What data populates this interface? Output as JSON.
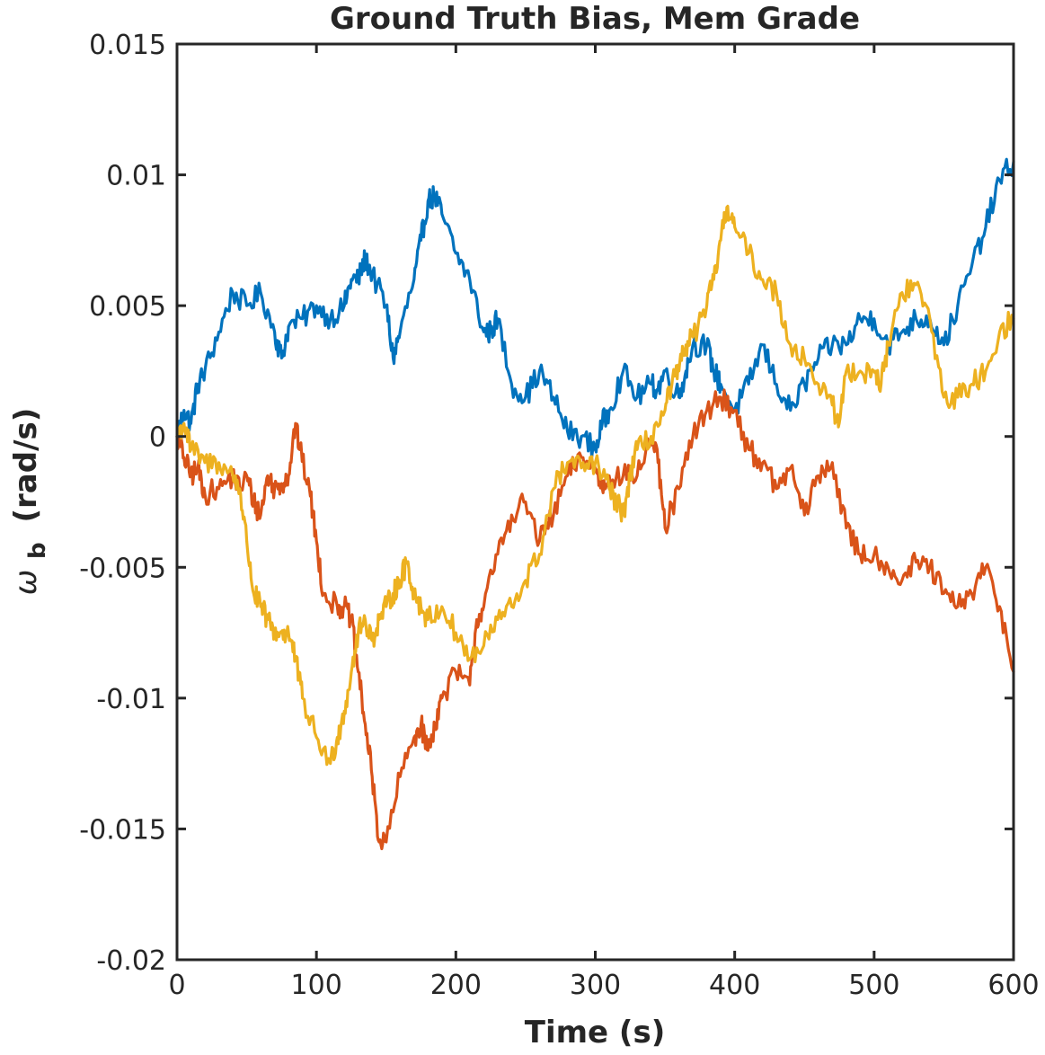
{
  "chart_data": {
    "type": "line",
    "title": "Ground Truth Bias, Mem Grade",
    "xlabel": "Time (s)",
    "ylabel": {
      "symbol": "ω",
      "subscript": "b",
      "unit": "(rad/s)"
    },
    "xlim": [
      0,
      600
    ],
    "ylim": [
      -0.02,
      0.015
    ],
    "xticks": [
      0,
      100,
      200,
      300,
      400,
      500,
      600
    ],
    "xtick_labels": [
      "0",
      "100",
      "200",
      "300",
      "400",
      "500",
      "600"
    ],
    "yticks": [
      0.015,
      0.01,
      0.005,
      0,
      -0.005,
      -0.01,
      -0.015,
      -0.02
    ],
    "ytick_labels": [
      "0.015",
      "0.01",
      "0.005",
      "0",
      "-0.005",
      "-0.01",
      "-0.015",
      "-0.02"
    ],
    "grid": false,
    "series": [
      {
        "color": "#0072BD",
        "points": [
          [
            0,
            0
          ],
          [
            5,
            0.001
          ],
          [
            10,
            0.0005
          ],
          [
            15,
            0.002
          ],
          [
            20,
            0.0025
          ],
          [
            30,
            0.004
          ],
          [
            40,
            0.0055
          ],
          [
            50,
            0.005
          ],
          [
            60,
            0.0055
          ],
          [
            70,
            0.004
          ],
          [
            75,
            0.003
          ],
          [
            80,
            0.0042
          ],
          [
            90,
            0.0045
          ],
          [
            100,
            0.005
          ],
          [
            110,
            0.0045
          ],
          [
            120,
            0.005
          ],
          [
            125,
            0.006
          ],
          [
            130,
            0.006
          ],
          [
            135,
            0.0068
          ],
          [
            140,
            0.0062
          ],
          [
            150,
            0.005
          ],
          [
            155,
            0.003
          ],
          [
            160,
            0.004
          ],
          [
            170,
            0.006
          ],
          [
            175,
            0.0075
          ],
          [
            180,
            0.009
          ],
          [
            185,
            0.0092
          ],
          [
            190,
            0.0085
          ],
          [
            200,
            0.007
          ],
          [
            210,
            0.006
          ],
          [
            220,
            0.004
          ],
          [
            225,
            0.004
          ],
          [
            230,
            0.0045
          ],
          [
            240,
            0.002
          ],
          [
            250,
            0.0015
          ],
          [
            260,
            0.0025
          ],
          [
            270,
            0.0015
          ],
          [
            280,
            0.0002
          ],
          [
            290,
            0.0
          ],
          [
            300,
            -0.0005
          ],
          [
            305,
            0.0005
          ],
          [
            310,
            0.001
          ],
          [
            320,
            0.0025
          ],
          [
            330,
            0.0015
          ],
          [
            340,
            0.002
          ],
          [
            345,
            0.0018
          ],
          [
            350,
            0.0025
          ],
          [
            360,
            0.0015
          ],
          [
            365,
            0.0025
          ],
          [
            370,
            0.0035
          ],
          [
            380,
            0.0035
          ],
          [
            385,
            0.0025
          ],
          [
            390,
            0.002
          ],
          [
            400,
            0.001
          ],
          [
            410,
            0.002
          ],
          [
            420,
            0.0035
          ],
          [
            430,
            0.002
          ],
          [
            440,
            0.001
          ],
          [
            450,
            0.002
          ],
          [
            460,
            0.003
          ],
          [
            470,
            0.0035
          ],
          [
            480,
            0.0035
          ],
          [
            490,
            0.0045
          ],
          [
            500,
            0.0045
          ],
          [
            510,
            0.0035
          ],
          [
            520,
            0.004
          ],
          [
            530,
            0.0045
          ],
          [
            540,
            0.0045
          ],
          [
            550,
            0.0035
          ],
          [
            560,
            0.005
          ],
          [
            570,
            0.0065
          ],
          [
            580,
            0.008
          ],
          [
            590,
            0.0098
          ],
          [
            600,
            0.0105
          ]
        ]
      },
      {
        "color": "#D95319",
        "points": [
          [
            0,
            0
          ],
          [
            5,
            -0.0008
          ],
          [
            10,
            -0.0015
          ],
          [
            15,
            -0.0012
          ],
          [
            20,
            -0.0022
          ],
          [
            30,
            -0.002
          ],
          [
            40,
            -0.0015
          ],
          [
            45,
            -0.002
          ],
          [
            50,
            -0.0015
          ],
          [
            55,
            -0.0025
          ],
          [
            60,
            -0.003
          ],
          [
            65,
            -0.0015
          ],
          [
            70,
            -0.002
          ],
          [
            75,
            -0.0018
          ],
          [
            80,
            -0.0015
          ],
          [
            85,
            0.0005
          ],
          [
            88,
            -0.0005
          ],
          [
            95,
            -0.002
          ],
          [
            100,
            -0.004
          ],
          [
            105,
            -0.006
          ],
          [
            115,
            -0.0065
          ],
          [
            120,
            -0.0065
          ],
          [
            125,
            -0.007
          ],
          [
            130,
            -0.009
          ],
          [
            135,
            -0.011
          ],
          [
            140,
            -0.013
          ],
          [
            145,
            -0.0155
          ],
          [
            150,
            -0.0155
          ],
          [
            160,
            -0.013
          ],
          [
            170,
            -0.0115
          ],
          [
            175,
            -0.011
          ],
          [
            180,
            -0.012
          ],
          [
            185,
            -0.011
          ],
          [
            190,
            -0.01
          ],
          [
            200,
            -0.009
          ],
          [
            210,
            -0.0095
          ],
          [
            215,
            -0.007
          ],
          [
            220,
            -0.0065
          ],
          [
            230,
            -0.0045
          ],
          [
            240,
            -0.003
          ],
          [
            250,
            -0.0025
          ],
          [
            260,
            -0.004
          ],
          [
            270,
            -0.003
          ],
          [
            280,
            -0.0015
          ],
          [
            290,
            -0.0008
          ],
          [
            300,
            -0.0012
          ],
          [
            305,
            -0.002
          ],
          [
            310,
            -0.0015
          ],
          [
            320,
            -0.0015
          ],
          [
            330,
            -0.0015
          ],
          [
            340,
            0.0
          ],
          [
            345,
            -0.001
          ],
          [
            350,
            -0.0035
          ],
          [
            360,
            -0.002
          ],
          [
            370,
            0.0
          ],
          [
            380,
            0.001
          ],
          [
            390,
            0.0015
          ],
          [
            400,
            0.001
          ],
          [
            410,
            -0.0005
          ],
          [
            420,
            -0.001
          ],
          [
            430,
            -0.002
          ],
          [
            440,
            -0.0012
          ],
          [
            450,
            -0.003
          ],
          [
            460,
            -0.0015
          ],
          [
            470,
            -0.001
          ],
          [
            480,
            -0.0035
          ],
          [
            490,
            -0.0045
          ],
          [
            500,
            -0.0045
          ],
          [
            510,
            -0.005
          ],
          [
            520,
            -0.0055
          ],
          [
            530,
            -0.0048
          ],
          [
            540,
            -0.005
          ],
          [
            550,
            -0.006
          ],
          [
            560,
            -0.0065
          ],
          [
            570,
            -0.006
          ],
          [
            580,
            -0.005
          ],
          [
            590,
            -0.0065
          ],
          [
            600,
            -0.009
          ]
        ]
      },
      {
        "color": "#EDB120",
        "points": [
          [
            0,
            0
          ],
          [
            5,
            0.0005
          ],
          [
            10,
            -0.0005
          ],
          [
            20,
            -0.001
          ],
          [
            30,
            -0.001
          ],
          [
            40,
            -0.0015
          ],
          [
            45,
            -0.002
          ],
          [
            50,
            -0.004
          ],
          [
            55,
            -0.006
          ],
          [
            60,
            -0.0065
          ],
          [
            65,
            -0.007
          ],
          [
            70,
            -0.0075
          ],
          [
            75,
            -0.0075
          ],
          [
            80,
            -0.0075
          ],
          [
            85,
            -0.0085
          ],
          [
            90,
            -0.01
          ],
          [
            100,
            -0.0115
          ],
          [
            110,
            -0.0125
          ],
          [
            115,
            -0.0115
          ],
          [
            120,
            -0.0105
          ],
          [
            125,
            -0.009
          ],
          [
            130,
            -0.0075
          ],
          [
            135,
            -0.007
          ],
          [
            140,
            -0.0078
          ],
          [
            145,
            -0.007
          ],
          [
            150,
            -0.0065
          ],
          [
            155,
            -0.006
          ],
          [
            160,
            -0.0055
          ],
          [
            165,
            -0.0048
          ],
          [
            170,
            -0.006
          ],
          [
            175,
            -0.0065
          ],
          [
            180,
            -0.007
          ],
          [
            190,
            -0.0065
          ],
          [
            200,
            -0.0075
          ],
          [
            210,
            -0.0085
          ],
          [
            220,
            -0.008
          ],
          [
            230,
            -0.007
          ],
          [
            240,
            -0.0065
          ],
          [
            250,
            -0.0055
          ],
          [
            260,
            -0.0045
          ],
          [
            270,
            -0.002
          ],
          [
            280,
            -0.001
          ],
          [
            290,
            -0.0012
          ],
          [
            300,
            -0.001
          ],
          [
            310,
            -0.002
          ],
          [
            315,
            -0.0025
          ],
          [
            320,
            -0.003
          ],
          [
            325,
            -0.0015
          ],
          [
            330,
            -0.0005
          ],
          [
            340,
            0.0
          ],
          [
            350,
            0.001
          ],
          [
            355,
            0.002
          ],
          [
            360,
            0.0025
          ],
          [
            365,
            0.0035
          ],
          [
            370,
            0.0038
          ],
          [
            380,
            0.005
          ],
          [
            385,
            0.006
          ],
          [
            390,
            0.0075
          ],
          [
            395,
            0.0088
          ],
          [
            400,
            0.008
          ],
          [
            410,
            0.007
          ],
          [
            420,
            0.006
          ],
          [
            430,
            0.0055
          ],
          [
            440,
            0.0035
          ],
          [
            450,
            0.003
          ],
          [
            460,
            0.002
          ],
          [
            470,
            0.0012
          ],
          [
            475,
            0.0005
          ],
          [
            480,
            0.0025
          ],
          [
            490,
            0.0025
          ],
          [
            500,
            0.0025
          ],
          [
            505,
            0.002
          ],
          [
            510,
            0.0035
          ],
          [
            520,
            0.0055
          ],
          [
            530,
            0.0058
          ],
          [
            540,
            0.0045
          ],
          [
            550,
            0.0015
          ],
          [
            560,
            0.0015
          ],
          [
            570,
            0.002
          ],
          [
            580,
            0.0025
          ],
          [
            590,
            0.004
          ],
          [
            600,
            0.0045
          ]
        ]
      }
    ]
  }
}
